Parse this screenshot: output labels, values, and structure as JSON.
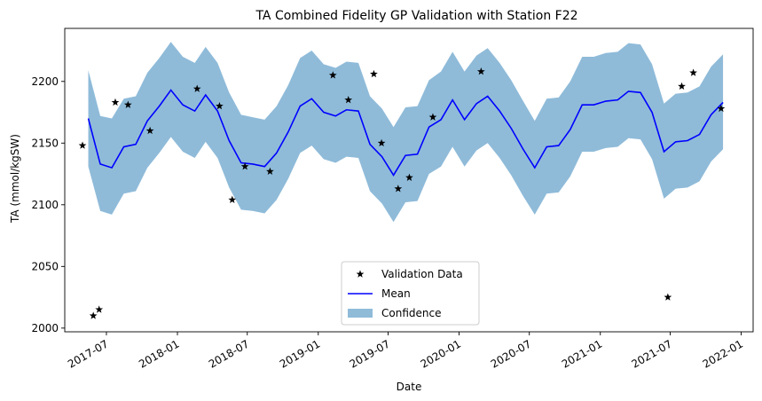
{
  "chart_data": {
    "type": "line",
    "title": "TA Combined Fidelity GP Validation with Station F22",
    "xlabel": "Date",
    "ylabel": "TA (mmol/kgSW)",
    "x_type": "date",
    "xlim": [
      "2017-03-15",
      "2022-02-01"
    ],
    "ylim": [
      1997,
      2243
    ],
    "x_ticks": [
      {
        "date": "2017-07-01",
        "label": "2017-07"
      },
      {
        "date": "2018-01-01",
        "label": "2018-01"
      },
      {
        "date": "2018-07-01",
        "label": "2018-07"
      },
      {
        "date": "2019-01-01",
        "label": "2019-01"
      },
      {
        "date": "2019-07-01",
        "label": "2019-07"
      },
      {
        "date": "2020-01-01",
        "label": "2020-01"
      },
      {
        "date": "2020-07-01",
        "label": "2020-07"
      },
      {
        "date": "2021-01-01",
        "label": "2021-01"
      },
      {
        "date": "2021-07-01",
        "label": "2021-07"
      },
      {
        "date": "2022-01-01",
        "label": "2022-01"
      }
    ],
    "y_ticks": [
      2000,
      2050,
      2100,
      2150,
      2200
    ],
    "grid": false,
    "legend": {
      "placement": "bottom-center",
      "entries": [
        {
          "label": "Validation Data",
          "kind": "star-marker"
        },
        {
          "label": "Mean",
          "kind": "line"
        },
        {
          "label": "Confidence",
          "kind": "area"
        }
      ]
    },
    "colors": {
      "mean": "#0000ff",
      "confidence": "#8fbbd9",
      "validation": "#000000"
    },
    "series": [
      {
        "name": "Mean",
        "kind": "line",
        "points": [
          {
            "x": "2017-05-15",
            "y": 2170
          },
          {
            "x": "2017-06-15",
            "y": 2133
          },
          {
            "x": "2017-07-15",
            "y": 2130
          },
          {
            "x": "2017-08-15",
            "y": 2147
          },
          {
            "x": "2017-09-15",
            "y": 2149
          },
          {
            "x": "2017-10-15",
            "y": 2168
          },
          {
            "x": "2017-11-15",
            "y": 2180
          },
          {
            "x": "2017-12-15",
            "y": 2193
          },
          {
            "x": "2018-01-15",
            "y": 2181
          },
          {
            "x": "2018-02-15",
            "y": 2176
          },
          {
            "x": "2018-03-15",
            "y": 2189
          },
          {
            "x": "2018-04-15",
            "y": 2176
          },
          {
            "x": "2018-05-15",
            "y": 2152
          },
          {
            "x": "2018-06-15",
            "y": 2134
          },
          {
            "x": "2018-07-15",
            "y": 2133
          },
          {
            "x": "2018-08-15",
            "y": 2131
          },
          {
            "x": "2018-09-15",
            "y": 2142
          },
          {
            "x": "2018-10-15",
            "y": 2159
          },
          {
            "x": "2018-11-15",
            "y": 2180
          },
          {
            "x": "2018-12-15",
            "y": 2186
          },
          {
            "x": "2019-01-15",
            "y": 2175
          },
          {
            "x": "2019-02-15",
            "y": 2172
          },
          {
            "x": "2019-03-15",
            "y": 2177
          },
          {
            "x": "2019-04-15",
            "y": 2176
          },
          {
            "x": "2019-05-15",
            "y": 2149
          },
          {
            "x": "2019-06-15",
            "y": 2139
          },
          {
            "x": "2019-07-15",
            "y": 2124
          },
          {
            "x": "2019-08-15",
            "y": 2140
          },
          {
            "x": "2019-09-15",
            "y": 2141
          },
          {
            "x": "2019-10-15",
            "y": 2163
          },
          {
            "x": "2019-11-15",
            "y": 2169
          },
          {
            "x": "2019-12-15",
            "y": 2185
          },
          {
            "x": "2020-01-15",
            "y": 2169
          },
          {
            "x": "2020-02-15",
            "y": 2182
          },
          {
            "x": "2020-03-15",
            "y": 2188
          },
          {
            "x": "2020-04-15",
            "y": 2176
          },
          {
            "x": "2020-05-15",
            "y": 2162
          },
          {
            "x": "2020-06-15",
            "y": 2145
          },
          {
            "x": "2020-07-15",
            "y": 2130
          },
          {
            "x": "2020-08-15",
            "y": 2147
          },
          {
            "x": "2020-09-15",
            "y": 2148
          },
          {
            "x": "2020-10-15",
            "y": 2161
          },
          {
            "x": "2020-11-15",
            "y": 2181
          },
          {
            "x": "2020-12-15",
            "y": 2181
          },
          {
            "x": "2021-01-15",
            "y": 2184
          },
          {
            "x": "2021-02-15",
            "y": 2185
          },
          {
            "x": "2021-03-15",
            "y": 2192
          },
          {
            "x": "2021-04-15",
            "y": 2191
          },
          {
            "x": "2021-05-15",
            "y": 2175
          },
          {
            "x": "2021-06-15",
            "y": 2143
          },
          {
            "x": "2021-07-15",
            "y": 2151
          },
          {
            "x": "2021-08-15",
            "y": 2152
          },
          {
            "x": "2021-09-15",
            "y": 2157
          },
          {
            "x": "2021-10-15",
            "y": 2173
          },
          {
            "x": "2021-11-15",
            "y": 2183
          }
        ]
      },
      {
        "name": "Confidence",
        "kind": "band",
        "points": [
          {
            "x": "2017-05-15",
            "lower": 2131,
            "upper": 2209
          },
          {
            "x": "2017-06-15",
            "lower": 2095,
            "upper": 2172
          },
          {
            "x": "2017-07-15",
            "lower": 2092,
            "upper": 2170
          },
          {
            "x": "2017-08-15",
            "lower": 2109,
            "upper": 2186
          },
          {
            "x": "2017-09-15",
            "lower": 2111,
            "upper": 2188
          },
          {
            "x": "2017-10-15",
            "lower": 2130,
            "upper": 2207
          },
          {
            "x": "2017-11-15",
            "lower": 2142,
            "upper": 2219
          },
          {
            "x": "2017-12-15",
            "lower": 2155,
            "upper": 2232
          },
          {
            "x": "2018-01-15",
            "lower": 2143,
            "upper": 2220
          },
          {
            "x": "2018-02-15",
            "lower": 2138,
            "upper": 2215
          },
          {
            "x": "2018-03-15",
            "lower": 2151,
            "upper": 2228
          },
          {
            "x": "2018-04-15",
            "lower": 2138,
            "upper": 2215
          },
          {
            "x": "2018-05-15",
            "lower": 2114,
            "upper": 2191
          },
          {
            "x": "2018-06-15",
            "lower": 2096,
            "upper": 2173
          },
          {
            "x": "2018-07-15",
            "lower": 2095,
            "upper": 2171
          },
          {
            "x": "2018-08-15",
            "lower": 2093,
            "upper": 2169
          },
          {
            "x": "2018-09-15",
            "lower": 2104,
            "upper": 2180
          },
          {
            "x": "2018-10-15",
            "lower": 2121,
            "upper": 2197
          },
          {
            "x": "2018-11-15",
            "lower": 2142,
            "upper": 2219
          },
          {
            "x": "2018-12-15",
            "lower": 2148,
            "upper": 2225
          },
          {
            "x": "2019-01-15",
            "lower": 2137,
            "upper": 2214
          },
          {
            "x": "2019-02-15",
            "lower": 2134,
            "upper": 2211
          },
          {
            "x": "2019-03-15",
            "lower": 2139,
            "upper": 2216
          },
          {
            "x": "2019-04-15",
            "lower": 2138,
            "upper": 2215
          },
          {
            "x": "2019-05-15",
            "lower": 2111,
            "upper": 2188
          },
          {
            "x": "2019-06-15",
            "lower": 2101,
            "upper": 2178
          },
          {
            "x": "2019-07-15",
            "lower": 2086,
            "upper": 2163
          },
          {
            "x": "2019-08-15",
            "lower": 2102,
            "upper": 2179
          },
          {
            "x": "2019-09-15",
            "lower": 2103,
            "upper": 2180
          },
          {
            "x": "2019-10-15",
            "lower": 2125,
            "upper": 2201
          },
          {
            "x": "2019-11-15",
            "lower": 2131,
            "upper": 2208
          },
          {
            "x": "2019-12-15",
            "lower": 2147,
            "upper": 2224
          },
          {
            "x": "2020-01-15",
            "lower": 2131,
            "upper": 2208
          },
          {
            "x": "2020-02-15",
            "lower": 2144,
            "upper": 2221
          },
          {
            "x": "2020-03-15",
            "lower": 2150,
            "upper": 2227
          },
          {
            "x": "2020-04-15",
            "lower": 2138,
            "upper": 2215
          },
          {
            "x": "2020-05-15",
            "lower": 2124,
            "upper": 2201
          },
          {
            "x": "2020-06-15",
            "lower": 2107,
            "upper": 2184
          },
          {
            "x": "2020-07-15",
            "lower": 2092,
            "upper": 2168
          },
          {
            "x": "2020-08-15",
            "lower": 2109,
            "upper": 2186
          },
          {
            "x": "2020-09-15",
            "lower": 2110,
            "upper": 2187
          },
          {
            "x": "2020-10-15",
            "lower": 2123,
            "upper": 2200
          },
          {
            "x": "2020-11-15",
            "lower": 2143,
            "upper": 2220
          },
          {
            "x": "2020-12-15",
            "lower": 2143,
            "upper": 2220
          },
          {
            "x": "2021-01-15",
            "lower": 2146,
            "upper": 2223
          },
          {
            "x": "2021-02-15",
            "lower": 2147,
            "upper": 2224
          },
          {
            "x": "2021-03-15",
            "lower": 2154,
            "upper": 2231
          },
          {
            "x": "2021-04-15",
            "lower": 2153,
            "upper": 2230
          },
          {
            "x": "2021-05-15",
            "lower": 2137,
            "upper": 2214
          },
          {
            "x": "2021-06-15",
            "lower": 2105,
            "upper": 2182
          },
          {
            "x": "2021-07-15",
            "lower": 2113,
            "upper": 2190
          },
          {
            "x": "2021-08-15",
            "lower": 2114,
            "upper": 2191
          },
          {
            "x": "2021-09-15",
            "lower": 2119,
            "upper": 2196
          },
          {
            "x": "2021-10-15",
            "lower": 2135,
            "upper": 2212
          },
          {
            "x": "2021-11-15",
            "lower": 2145,
            "upper": 2222
          }
        ]
      },
      {
        "name": "Validation Data",
        "kind": "scatter",
        "points": [
          {
            "x": "2017-04-30",
            "y": 2148
          },
          {
            "x": "2017-05-28",
            "y": 2010
          },
          {
            "x": "2017-06-12",
            "y": 2015
          },
          {
            "x": "2017-07-24",
            "y": 2183
          },
          {
            "x": "2017-08-26",
            "y": 2181
          },
          {
            "x": "2017-10-22",
            "y": 2160
          },
          {
            "x": "2018-02-21",
            "y": 2194
          },
          {
            "x": "2018-04-20",
            "y": 2180
          },
          {
            "x": "2018-05-23",
            "y": 2104
          },
          {
            "x": "2018-06-25",
            "y": 2131
          },
          {
            "x": "2018-08-29",
            "y": 2127
          },
          {
            "x": "2019-02-08",
            "y": 2205
          },
          {
            "x": "2019-03-20",
            "y": 2185
          },
          {
            "x": "2019-05-25",
            "y": 2206
          },
          {
            "x": "2019-06-14",
            "y": 2150
          },
          {
            "x": "2019-07-27",
            "y": 2113
          },
          {
            "x": "2019-08-25",
            "y": 2122
          },
          {
            "x": "2019-10-25",
            "y": 2171
          },
          {
            "x": "2020-02-27",
            "y": 2208
          },
          {
            "x": "2021-06-25",
            "y": 2025
          },
          {
            "x": "2021-07-31",
            "y": 2196
          },
          {
            "x": "2021-08-30",
            "y": 2207
          },
          {
            "x": "2021-11-10",
            "y": 2178
          }
        ]
      }
    ]
  }
}
